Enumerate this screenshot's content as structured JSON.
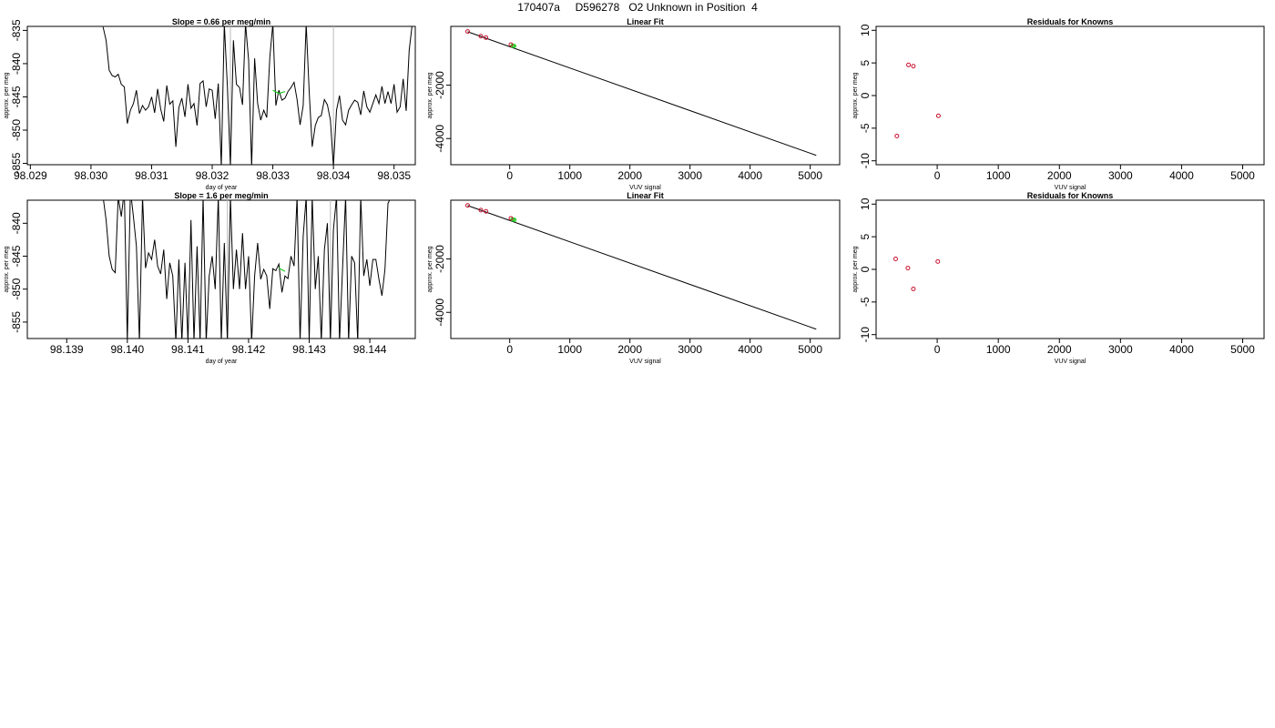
{
  "page_title": "170407a     D596278   O2 Unknown in Position  4",
  "colors": {
    "line": "#000000",
    "known_point": "#c8102e",
    "unknown_point": "#22cc22",
    "marker_line": "#bbbbbb",
    "axis": "#000000"
  },
  "chart_data": [
    {
      "id": "ts1",
      "type": "line",
      "title": "Slope =  0.66  per meg/min",
      "xlabel": "day of year",
      "ylabel": "approx. per meg",
      "xlim": [
        98.02895,
        98.03535
      ],
      "ylim": [
        -855.2,
        -834.4
      ],
      "xticks": [
        "98.029",
        "98.030",
        "98.031",
        "98.032",
        "98.033",
        "98.034",
        "98.035"
      ],
      "yticks": [
        "-835",
        "-840",
        "-845",
        "-850",
        "-855"
      ],
      "grid": false,
      "vlines": [
        98.0323,
        98.034
      ],
      "highlight": [
        [
          98.033,
          -844.0
        ],
        [
          98.0331,
          -844.5
        ],
        [
          98.0332,
          -844.2
        ]
      ],
      "series": [
        {
          "values": [
            [
              98.0302,
              -834.5
            ],
            [
              98.03025,
              -836.5
            ],
            [
              98.0303,
              -841.0
            ],
            [
              98.03035,
              -841.8
            ],
            [
              98.0304,
              -842.0
            ],
            [
              98.03045,
              -841.6
            ],
            [
              98.0305,
              -843.1
            ],
            [
              98.03055,
              -843.5
            ],
            [
              98.0306,
              -849.0
            ],
            [
              98.03065,
              -847.0
            ],
            [
              98.0307,
              -846.0
            ],
            [
              98.03075,
              -844.0
            ],
            [
              98.0308,
              -847.5
            ],
            [
              98.03085,
              -846.3
            ],
            [
              98.0309,
              -847.0
            ],
            [
              98.03095,
              -846.5
            ],
            [
              98.031,
              -845.0
            ],
            [
              98.03105,
              -847.4
            ],
            [
              98.0311,
              -843.8
            ],
            [
              98.03115,
              -846.8
            ],
            [
              98.0312,
              -848.7
            ],
            [
              98.03125,
              -843.3
            ],
            [
              98.0313,
              -846.1
            ],
            [
              98.03135,
              -845.6
            ],
            [
              98.0314,
              -852.5
            ],
            [
              98.03145,
              -846.6
            ],
            [
              98.0315,
              -845.2
            ],
            [
              98.03155,
              -848.0
            ],
            [
              98.0316,
              -843.1
            ],
            [
              98.03165,
              -846.7
            ],
            [
              98.0317,
              -846.0
            ],
            [
              98.03175,
              -849.3
            ],
            [
              98.0318,
              -843.0
            ],
            [
              98.03185,
              -842.6
            ],
            [
              98.0319,
              -846.5
            ],
            [
              98.03195,
              -843.8
            ],
            [
              98.032,
              -844.0
            ],
            [
              98.03205,
              -848.3
            ],
            [
              98.0321,
              -843.0
            ],
            [
              98.03215,
              -855.5
            ],
            [
              98.0322,
              -834.0
            ],
            [
              98.03225,
              -843.5
            ],
            [
              98.0323,
              -855.5
            ],
            [
              98.03235,
              -836.5
            ],
            [
              98.0324,
              -843.1
            ],
            [
              98.03245,
              -843.6
            ],
            [
              98.0325,
              -846.2
            ],
            [
              98.03255,
              -834.0
            ],
            [
              98.0326,
              -839.5
            ],
            [
              98.03265,
              -855.5
            ],
            [
              98.0327,
              -839.2
            ],
            [
              98.03275,
              -846.0
            ],
            [
              98.0328,
              -848.5
            ],
            [
              98.03285,
              -847.0
            ],
            [
              98.0329,
              -848.1
            ],
            [
              98.03295,
              -839.0
            ],
            [
              98.033,
              -834.0
            ],
            [
              98.03305,
              -846.3
            ],
            [
              98.0331,
              -844.0
            ],
            [
              98.03315,
              -845.5
            ],
            [
              98.0332,
              -845.2
            ],
            [
              98.03325,
              -844.2
            ],
            [
              98.0333,
              -843.6
            ],
            [
              98.03335,
              -842.8
            ],
            [
              98.0334,
              -845.4
            ],
            [
              98.03345,
              -849.2
            ],
            [
              98.0335,
              -846.3
            ],
            [
              98.03355,
              -834.0
            ],
            [
              98.0336,
              -844.2
            ],
            [
              98.03365,
              -852.5
            ],
            [
              98.0337,
              -849.3
            ],
            [
              98.03375,
              -848.1
            ],
            [
              98.0338,
              -847.8
            ],
            [
              98.03385,
              -845.4
            ],
            [
              98.0339,
              -846.2
            ],
            [
              98.03395,
              -848.5
            ],
            [
              98.034,
              -855.5
            ],
            [
              98.03405,
              -847.0
            ],
            [
              98.0341,
              -844.8
            ],
            [
              98.03415,
              -848.5
            ],
            [
              98.0342,
              -849.2
            ],
            [
              98.03425,
              -847.0
            ],
            [
              98.0343,
              -846.2
            ],
            [
              98.03435,
              -845.5
            ],
            [
              98.0344,
              -845.8
            ],
            [
              98.03445,
              -847.7
            ],
            [
              98.0345,
              -844.1
            ],
            [
              98.03455,
              -846.5
            ],
            [
              98.0346,
              -847.3
            ],
            [
              98.03465,
              -846.0
            ],
            [
              98.0347,
              -844.7
            ],
            [
              98.03475,
              -846.0
            ],
            [
              98.0348,
              -843.4
            ],
            [
              98.03485,
              -846.0
            ],
            [
              98.0349,
              -844.2
            ],
            [
              98.03495,
              -846.0
            ],
            [
              98.035,
              -843.1
            ],
            [
              98.03505,
              -847.3
            ],
            [
              98.0351,
              -846.5
            ],
            [
              98.03515,
              -842.3
            ],
            [
              98.0352,
              -847.1
            ],
            [
              98.03525,
              -838.0
            ],
            [
              98.0353,
              -834.0
            ]
          ]
        }
      ]
    },
    {
      "id": "fit1",
      "type": "scatter",
      "title": "Linear Fit",
      "xlabel": "VUV signal",
      "ylabel": "approx. per meg",
      "xlim": [
        -980,
        5490
      ],
      "ylim": [
        -4980,
        200
      ],
      "xticks": [
        "0",
        "1000",
        "2000",
        "3000",
        "4000",
        "5000"
      ],
      "yticks": [
        "-2000",
        "-4000"
      ],
      "fit_line": [
        [
          -700,
          0
        ],
        [
          5100,
          -4630
        ]
      ],
      "known_points": [
        [
          -700,
          8
        ],
        [
          -480,
          -165
        ],
        [
          -395,
          -220
        ],
        [
          20,
          -483
        ]
      ],
      "unknown_points": [
        [
          45,
          -523
        ],
        [
          60,
          -528
        ],
        [
          75,
          -533
        ]
      ]
    },
    {
      "id": "res1",
      "type": "scatter",
      "title": "Residuals for Knowns",
      "xlabel": "VUV signal",
      "ylabel": "approx. per meg",
      "xlim": [
        -1000,
        5350
      ],
      "ylim": [
        -10.6,
        10.6
      ],
      "xticks": [
        "0",
        "1000",
        "2000",
        "3000",
        "4000",
        "5000"
      ],
      "yticks": [
        "10",
        "5",
        "0",
        "-5",
        "-10"
      ],
      "known_points": [
        [
          -660,
          -6.2
        ],
        [
          -470,
          4.7
        ],
        [
          -390,
          4.5
        ],
        [
          20,
          -3.1
        ]
      ]
    },
    {
      "id": "ts2",
      "type": "line",
      "title": "Slope =  1.6  per meg/min",
      "xlabel": "day of year",
      "ylabel": "approx. per meg",
      "xlim": [
        98.13835,
        98.14475
      ],
      "ylim": [
        -857.5,
        -836.5
      ],
      "xticks": [
        "98.139",
        "98.140",
        "98.141",
        "98.142",
        "98.143",
        "98.144"
      ],
      "yticks": [
        "-840",
        "-845",
        "-850",
        "-855"
      ],
      "grid": false,
      "vlines": [
        98.14165,
        98.14335
      ],
      "highlight": [
        [
          98.1425,
          -846.8
        ],
        [
          98.1426,
          -847.3
        ]
      ],
      "series": [
        {
          "values": [
            [
              98.1396,
              -836.0
            ],
            [
              98.13965,
              -839.5
            ],
            [
              98.1397,
              -845.0
            ],
            [
              98.13975,
              -847.0
            ],
            [
              98.1398,
              -847.5
            ],
            [
              98.13985,
              -836.0
            ],
            [
              98.1399,
              -839.0
            ],
            [
              98.13995,
              -835.0
            ],
            [
              98.14,
              -858.0
            ],
            [
              98.14005,
              -835.0
            ],
            [
              98.1401,
              -839.0
            ],
            [
              98.14015,
              -843.5
            ],
            [
              98.1402,
              -858.0
            ],
            [
              98.14025,
              -836.0
            ],
            [
              98.1403,
              -846.8
            ],
            [
              98.14035,
              -844.5
            ],
            [
              98.1404,
              -845.5
            ],
            [
              98.14045,
              -842.5
            ],
            [
              98.1405,
              -846.5
            ],
            [
              98.14055,
              -847.7
            ],
            [
              98.1406,
              -844.0
            ],
            [
              98.14065,
              -851.5
            ],
            [
              98.1407,
              -846.0
            ],
            [
              98.14075,
              -848.0
            ],
            [
              98.1408,
              -858.0
            ],
            [
              98.14085,
              -845.5
            ],
            [
              98.1409,
              -858.0
            ],
            [
              98.14095,
              -846.0
            ],
            [
              98.141,
              -858.0
            ],
            [
              98.14105,
              -839.5
            ],
            [
              98.1411,
              -858.0
            ],
            [
              98.14115,
              -843.5
            ],
            [
              98.1412,
              -858.0
            ],
            [
              98.14125,
              -836.0
            ],
            [
              98.1413,
              -858.0
            ],
            [
              98.14135,
              -848.0
            ],
            [
              98.1414,
              -845.0
            ],
            [
              98.14145,
              -850.0
            ],
            [
              98.1415,
              -836.0
            ],
            [
              98.14155,
              -858.0
            ],
            [
              98.1416,
              -843.0
            ],
            [
              98.14165,
              -858.0
            ],
            [
              98.1417,
              -836.0
            ],
            [
              98.14175,
              -850.0
            ],
            [
              98.1418,
              -844.0
            ],
            [
              98.14185,
              -850.0
            ],
            [
              98.1419,
              -841.5
            ],
            [
              98.14195,
              -850.0
            ],
            [
              98.142,
              -845.0
            ],
            [
              98.14205,
              -858.0
            ],
            [
              98.1421,
              -848.0
            ],
            [
              98.14215,
              -843.0
            ],
            [
              98.1422,
              -848.5
            ],
            [
              98.14225,
              -847.0
            ],
            [
              98.1423,
              -848.0
            ],
            [
              98.14235,
              -853.0
            ],
            [
              98.1424,
              -846.9
            ],
            [
              98.14245,
              -847.2
            ],
            [
              98.1425,
              -846.2
            ],
            [
              98.14255,
              -850.5
            ],
            [
              98.1426,
              -848.0
            ],
            [
              98.14265,
              -848.4
            ],
            [
              98.1427,
              -845.0
            ],
            [
              98.14275,
              -846.5
            ],
            [
              98.1428,
              -836.0
            ],
            [
              98.14285,
              -858.0
            ],
            [
              98.1429,
              -842.0
            ],
            [
              98.14295,
              -836.0
            ],
            [
              98.143,
              -858.0
            ],
            [
              98.14305,
              -836.0
            ],
            [
              98.1431,
              -850.0
            ],
            [
              98.14315,
              -845.0
            ],
            [
              98.1432,
              -858.0
            ],
            [
              98.14325,
              -844.0
            ],
            [
              98.1433,
              -840.0
            ],
            [
              98.14335,
              -858.0
            ],
            [
              98.1434,
              -841.0
            ],
            [
              98.14345,
              -836.0
            ],
            [
              98.1435,
              -858.0
            ],
            [
              98.14355,
              -847.0
            ],
            [
              98.1436,
              -836.0
            ],
            [
              98.14365,
              -858.0
            ],
            [
              98.1437,
              -845.0
            ],
            [
              98.14375,
              -846.0
            ],
            [
              98.1438,
              -858.0
            ],
            [
              98.14385,
              -836.0
            ],
            [
              98.1439,
              -848.0
            ],
            [
              98.14395,
              -845.5
            ],
            [
              98.144,
              -849.5
            ],
            [
              98.14405,
              -845.5
            ],
            [
              98.1441,
              -845.5
            ],
            [
              98.14415,
              -848.5
            ],
            [
              98.1442,
              -851.0
            ],
            [
              98.14425,
              -847.0
            ],
            [
              98.1443,
              -837.0
            ],
            [
              98.14435,
              -836.0
            ]
          ]
        }
      ]
    },
    {
      "id": "fit2",
      "type": "scatter",
      "title": "Linear Fit",
      "xlabel": "VUV signal",
      "ylabel": "approx. per meg",
      "xlim": [
        -980,
        5490
      ],
      "ylim": [
        -4980,
        200
      ],
      "xticks": [
        "0",
        "1000",
        "2000",
        "3000",
        "4000",
        "5000"
      ],
      "yticks": [
        "-2000",
        "-4000"
      ],
      "fit_line": [
        [
          -700,
          0
        ],
        [
          5100,
          -4630
        ]
      ],
      "known_points": [
        [
          -700,
          5
        ],
        [
          -480,
          -170
        ],
        [
          -395,
          -218
        ],
        [
          20,
          -480
        ]
      ],
      "unknown_points": [
        [
          45,
          -520
        ],
        [
          60,
          -526
        ],
        [
          80,
          -535
        ]
      ]
    },
    {
      "id": "res2",
      "type": "scatter",
      "title": "Residuals for Knowns",
      "xlabel": "VUV signal",
      "ylabel": "approx. per meg",
      "xlim": [
        -1000,
        5350
      ],
      "ylim": [
        -10.6,
        10.6
      ],
      "xticks": [
        "0",
        "1000",
        "2000",
        "3000",
        "4000",
        "5000"
      ],
      "yticks": [
        "10",
        "5",
        "0",
        "-5",
        "-10"
      ],
      "known_points": [
        [
          -680,
          1.6
        ],
        [
          -480,
          0.2
        ],
        [
          -390,
          -3.0
        ],
        [
          10,
          1.2
        ]
      ]
    }
  ]
}
